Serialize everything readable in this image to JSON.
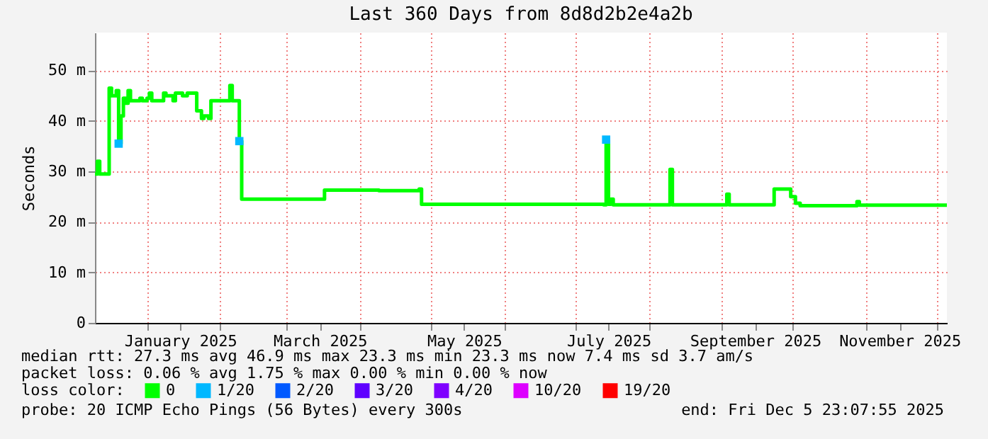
{
  "chart_data": {
    "type": "step",
    "title": "Last 360 Days from 8d8d2b2e4a2b",
    "ylabel": "Seconds",
    "legend_title": "loss color:",
    "legend": "bottom",
    "xlim": [
      "2024-12-10",
      "2025-12-05"
    ],
    "xticks": [
      {
        "value": "2025-01-01",
        "label": null
      },
      {
        "value": "2025-01-15",
        "label": "January 2025"
      },
      {
        "value": "2025-02-01",
        "label": null
      },
      {
        "value": "2025-03-01",
        "label": null
      },
      {
        "value": "2025-03-15",
        "label": "March 2025"
      },
      {
        "value": "2025-04-01",
        "label": null
      },
      {
        "value": "2025-05-01",
        "label": null
      },
      {
        "value": "2025-05-15",
        "label": "May 2025"
      },
      {
        "value": "2025-06-01",
        "label": null
      },
      {
        "value": "2025-07-01",
        "label": null
      },
      {
        "value": "2025-07-15",
        "label": "July 2025"
      },
      {
        "value": "2025-08-01",
        "label": null
      },
      {
        "value": "2025-09-01",
        "label": null
      },
      {
        "value": "2025-09-15",
        "label": "September 2025"
      },
      {
        "value": "2025-10-01",
        "label": null
      },
      {
        "value": "2025-11-01",
        "label": null
      },
      {
        "value": "2025-11-15",
        "label": "November 2025"
      },
      {
        "value": "2025-12-01",
        "label": null
      }
    ],
    "ylim": [
      0,
      57.5
    ],
    "yticks": [
      0,
      {
        "value": 10,
        "label": "10 m"
      },
      {
        "value": 20,
        "label": "20 m"
      },
      {
        "value": 30,
        "label": "30 m"
      },
      {
        "value": 40,
        "label": "40 m"
      },
      {
        "value": 50,
        "label": "50 m"
      }
    ],
    "grid": true,
    "series": [
      {
        "name": "0",
        "color": "#00ff00",
        "x": [
          "2024-12-10",
          "2024-12-11",
          "2024-12-12",
          "2024-12-16",
          "2024-12-17",
          "2024-12-19",
          "2024-12-20",
          "2024-12-21",
          "2024-12-22",
          "2024-12-23",
          "2024-12-24",
          "2024-12-25",
          "2024-12-28",
          "2024-12-29",
          "2024-12-30",
          "2025-01-01",
          "2025-01-02",
          "2025-01-03",
          "2025-01-05",
          "2025-01-08",
          "2025-01-09",
          "2025-01-12",
          "2025-01-13",
          "2025-01-16",
          "2025-01-18",
          "2025-01-22",
          "2025-01-24",
          "2025-01-25",
          "2025-01-27",
          "2025-01-28",
          "2025-01-30",
          "2025-02-04",
          "2025-02-05",
          "2025-02-06",
          "2025-02-08",
          "2025-02-09",
          "2025-02-10",
          "2025-03-16",
          "2025-03-17",
          "2025-04-09",
          "2025-04-26",
          "2025-04-27",
          "2025-07-13",
          "2025-07-14",
          "2025-07-15",
          "2025-07-16",
          "2025-07-17",
          "2025-08-09",
          "2025-08-10",
          "2025-08-11",
          "2025-09-02",
          "2025-09-03",
          "2025-09-04",
          "2025-09-22",
          "2025-09-23",
          "2025-09-30",
          "2025-10-02",
          "2025-10-04",
          "2025-10-28",
          "2025-10-29",
          "2025-12-05"
        ],
        "values": [
          29.5,
          32,
          29.5,
          46.5,
          45,
          46,
          35.5,
          41,
          44.5,
          43.5,
          46,
          44,
          44,
          44.5,
          44,
          44.5,
          45.5,
          44,
          44,
          45.5,
          45,
          44,
          45.5,
          45,
          45.5,
          42,
          40.5,
          41,
          40.5,
          44,
          44,
          44,
          47,
          44,
          44,
          36,
          24.5,
          24.5,
          26.3,
          26.2,
          26.5,
          23.5,
          23.4,
          36.3,
          23.5,
          24.5,
          23.4,
          23.4,
          30.4,
          23.4,
          23.4,
          25.5,
          23.4,
          23.4,
          26.5,
          25,
          23.7,
          23.2,
          24,
          23.3,
          23.3
        ]
      },
      {
        "name": "1/20",
        "color": "#00b8ff",
        "type": "scatter",
        "marker": "square",
        "x": [
          "2024-12-20",
          "2025-02-09",
          "2025-07-14"
        ],
        "values": [
          35.5,
          36,
          36.3
        ]
      },
      {
        "name": "2/20",
        "color": "#0059ff",
        "type": "scatter"
      },
      {
        "name": "3/20",
        "color": "#5e00ff",
        "type": "scatter"
      },
      {
        "name": "4/20",
        "color": "#7e00ff",
        "type": "scatter"
      },
      {
        "name": "10/20",
        "color": "#dd00ff",
        "type": "scatter"
      },
      {
        "name": "19/20",
        "color": "#ff0000",
        "type": "scatter"
      }
    ],
    "annotations": [
      "median rtt:  27.3 ms avg  46.9 ms max  23.3 ms min  23.3 ms now  7.4 ms sd  3.7   am/s",
      "packet loss: 0.06 % avg  1.75 % max  0.00 % min  0.00 % now",
      "probe:        20 ICMP Echo Pings (56 Bytes) every 300s",
      "end: Fri Dec  5 23:07:55 2025"
    ]
  }
}
